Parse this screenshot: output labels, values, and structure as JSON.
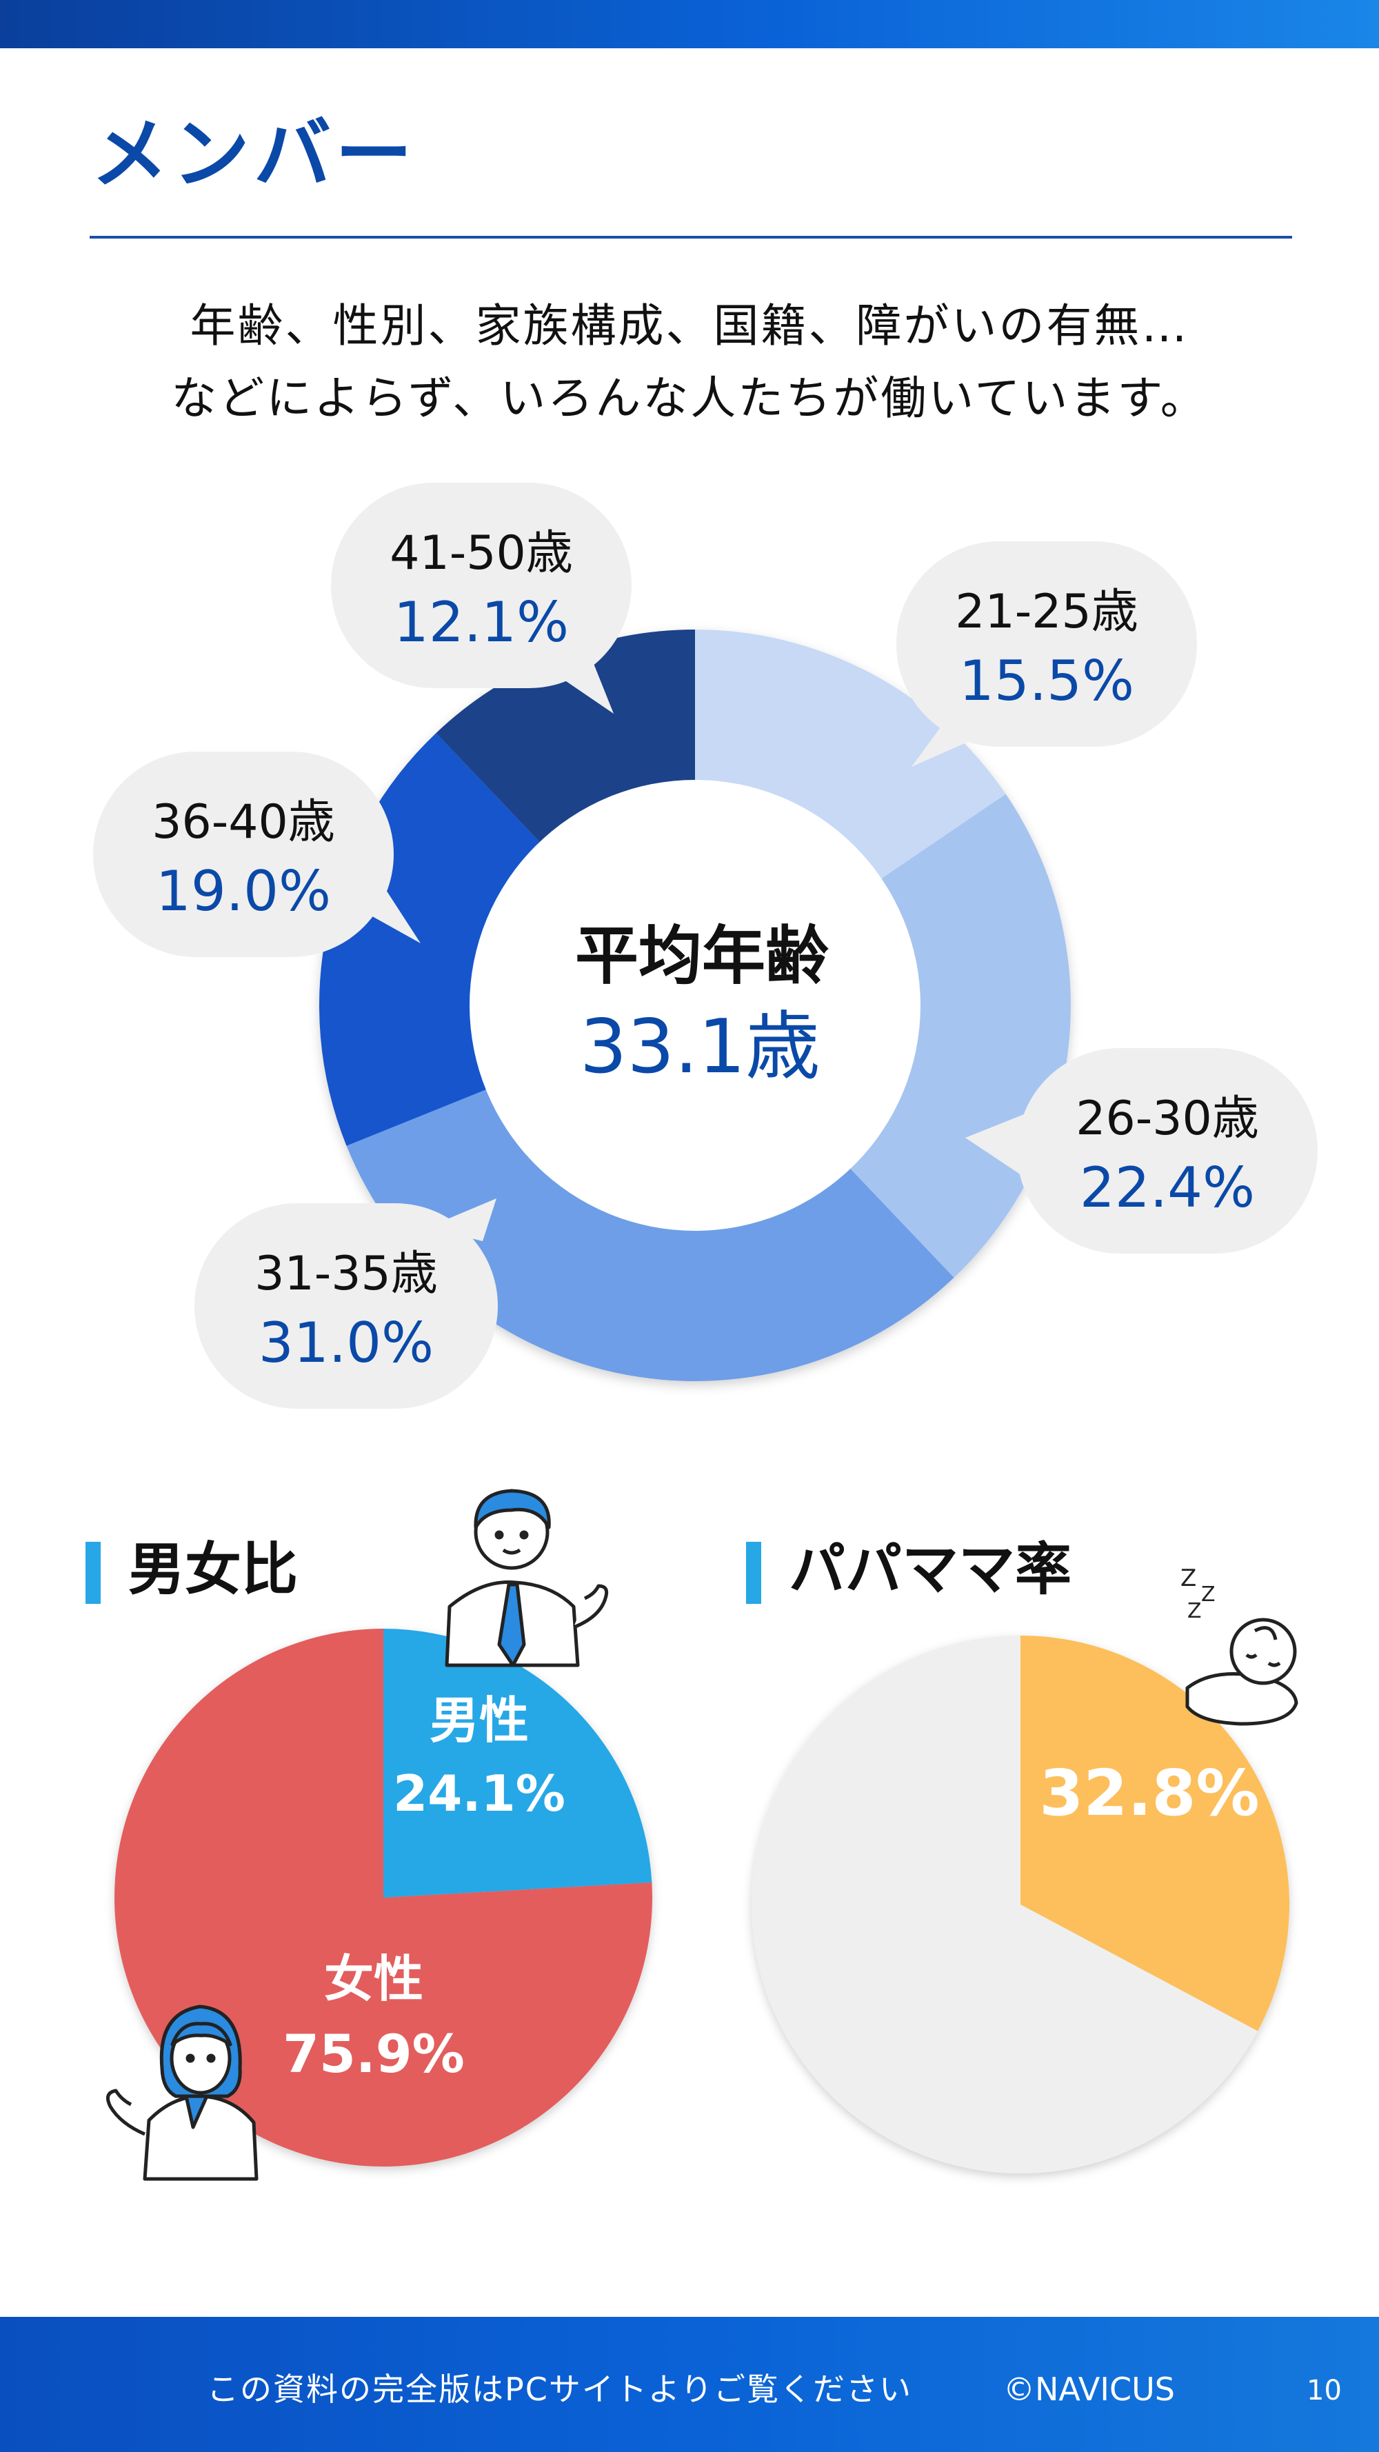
{
  "title": "メンバー",
  "intro": {
    "line1": "年齢、性別、家族構成、国籍、障がいの有無…",
    "line2": "などによらず、いろんな人たちが働いています。"
  },
  "sections": {
    "gender": "男女比",
    "parent": "パパママ率"
  },
  "colors": {
    "accent": "#0a49a8",
    "male": "#27a7e6",
    "female": "#e35d5d",
    "parent": "#fcbf5b",
    "empty": "#efefef"
  },
  "icons": [
    "businessman-illustration",
    "businesswoman-illustration",
    "sleeping-baby-illustration"
  ],
  "chart_data": [
    {
      "type": "pie",
      "variant": "donut",
      "center_label": "平均年齢",
      "center_value": "33.1歳",
      "slices": [
        {
          "label": "21-25歳",
          "value": 15.5,
          "value_text": "15.5%",
          "color": "#c7d9f5"
        },
        {
          "label": "26-30歳",
          "value": 22.4,
          "value_text": "22.4%",
          "color": "#a6c4f0"
        },
        {
          "label": "31-35歳",
          "value": 31.0,
          "value_text": "31.0%",
          "color": "#6e9ee8"
        },
        {
          "label": "36-40歳",
          "value": 19.0,
          "value_text": "19.0%",
          "color": "#1655cc"
        },
        {
          "label": "41-50歳",
          "value": 12.1,
          "value_text": "12.1%",
          "color": "#1a438a"
        }
      ]
    },
    {
      "type": "pie",
      "slices": [
        {
          "label": "男性",
          "value": 24.1,
          "value_text": "24.1%",
          "color": "#27a7e6"
        },
        {
          "label": "女性",
          "value": 75.9,
          "value_text": "75.9%",
          "color": "#e35d5d"
        }
      ]
    },
    {
      "type": "pie",
      "slices": [
        {
          "label": "",
          "value": 32.8,
          "value_text": "32.8%",
          "color": "#fcbf5b"
        },
        {
          "label": "",
          "value": 67.2,
          "color": "#efefef"
        }
      ]
    }
  ],
  "footer": {
    "text": "この資料の完全版はPCサイトよりご覧ください",
    "copyright": "©NAVICUS",
    "page": "10"
  }
}
